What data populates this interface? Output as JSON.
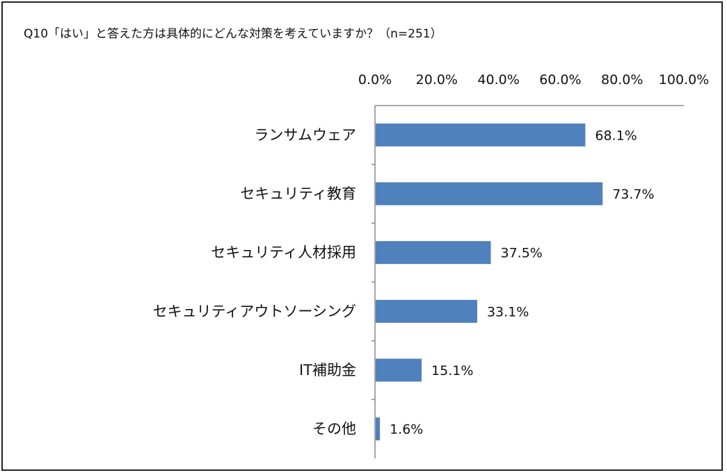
{
  "chart_data": {
    "type": "bar",
    "orientation": "horizontal",
    "title": "Q10「はい」と答えた方は具体的にどんな対策を考えていますか？（n=251）",
    "categories": [
      "ランサムウェア",
      "セキュリティ教育",
      "セキュリティ人材採用",
      "セキュリティアウトソーシング",
      "IT補助金",
      "その他"
    ],
    "values": [
      68.1,
      73.7,
      37.5,
      33.1,
      15.1,
      1.6
    ],
    "value_labels": [
      "68.1%",
      "73.7%",
      "37.5%",
      "33.1%",
      "15.1%",
      "1.6%"
    ],
    "x_ticks": [
      "0.0%",
      "20.0%",
      "40.0%",
      "60.0%",
      "80.0%",
      "100.0%"
    ],
    "xlim": [
      0,
      100
    ],
    "axis_position": "top",
    "grid": false,
    "bar_color": "#4f81bd"
  }
}
